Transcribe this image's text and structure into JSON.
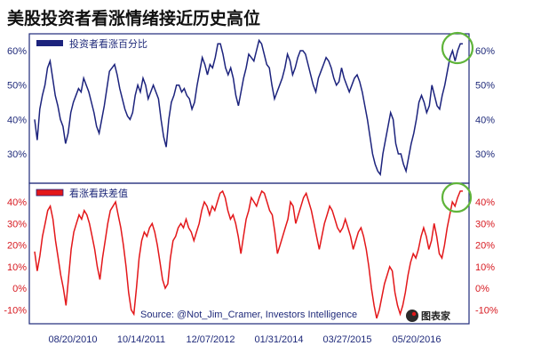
{
  "page": {
    "title": "美股投资者看涨情绪接近历史高位",
    "source": "Source: @Not_Jim_Cramer, Investors Intelligence",
    "logo_text": "图表家"
  },
  "colors": {
    "top_line": "#1c237d",
    "bottom_line": "#e3171a",
    "highlight": "#5fb43a",
    "frame": "#1f2a7a"
  },
  "chart_data": [
    {
      "type": "line",
      "title": "",
      "legend": "投资者看涨百分比",
      "series": [
        {
          "name": "投资者看涨百分比"
        }
      ],
      "y_ticks": [
        "30%",
        "40%",
        "50%",
        "60%"
      ],
      "y_tick_values": [
        30,
        40,
        50,
        60
      ],
      "ylim": [
        25,
        64
      ],
      "x_ticks": [
        "08/20/2010",
        "10/14/2011",
        "12/07/2012",
        "01/31/2014",
        "03/27/2015",
        "05/20/2016"
      ],
      "values": [
        40,
        34,
        43,
        47,
        50,
        55,
        57,
        52,
        47,
        44,
        40,
        38,
        33,
        36,
        42,
        45,
        47,
        49,
        48,
        52,
        50,
        48,
        45,
        42,
        38,
        36,
        40,
        44,
        49,
        54,
        55,
        56,
        53,
        49,
        46,
        43,
        41,
        40,
        42,
        47,
        50,
        48,
        52,
        50,
        46,
        48,
        50,
        48,
        46,
        40,
        35,
        32,
        40,
        45,
        47,
        50,
        50,
        48,
        49,
        47,
        46,
        43,
        45,
        50,
        54,
        58,
        56,
        53,
        56,
        55,
        58,
        62,
        62,
        59,
        55,
        53,
        55,
        52,
        47,
        44,
        48,
        52,
        55,
        59,
        58,
        57,
        60,
        63,
        62,
        59,
        56,
        55,
        50,
        46,
        48,
        50,
        52,
        55,
        59,
        57,
        53,
        55,
        58,
        60,
        60,
        59,
        56,
        53,
        50,
        48,
        52,
        54,
        56,
        58,
        57,
        55,
        52,
        50,
        51,
        55,
        52,
        50,
        48,
        50,
        52,
        53,
        51,
        48,
        44,
        40,
        35,
        30,
        27,
        25,
        24,
        30,
        34,
        38,
        42,
        40,
        33,
        30,
        30,
        27,
        25,
        29,
        33,
        36,
        40,
        45,
        47,
        45,
        42,
        44,
        50,
        47,
        44,
        43,
        47,
        50,
        54,
        58,
        60,
        57,
        60,
        62,
        62
      ]
    },
    {
      "type": "line",
      "title": "",
      "legend": "看涨看跌差值",
      "series": [
        {
          "name": "看涨看跌差值"
        }
      ],
      "y_ticks": [
        "-10%",
        "0%",
        "10%",
        "20%",
        "30%",
        "40%"
      ],
      "y_tick_values": [
        -10,
        0,
        10,
        20,
        30,
        40
      ],
      "ylim": [
        -14,
        46
      ],
      "x_ticks": [
        "08/20/2010",
        "10/14/2011",
        "12/07/2012",
        "01/31/2014",
        "03/27/2015",
        "05/20/2016"
      ],
      "values": [
        17,
        8,
        15,
        24,
        30,
        36,
        38,
        32,
        22,
        14,
        6,
        0,
        -8,
        5,
        18,
        26,
        30,
        34,
        32,
        36,
        34,
        30,
        24,
        18,
        10,
        4,
        14,
        22,
        30,
        36,
        38,
        40,
        34,
        28,
        20,
        10,
        -2,
        -10,
        -12,
        0,
        14,
        22,
        26,
        24,
        28,
        30,
        26,
        20,
        12,
        4,
        0,
        2,
        14,
        22,
        24,
        28,
        30,
        28,
        32,
        28,
        26,
        22,
        26,
        30,
        36,
        40,
        38,
        34,
        38,
        36,
        40,
        44,
        45,
        42,
        36,
        32,
        34,
        30,
        24,
        16,
        24,
        32,
        36,
        42,
        40,
        38,
        42,
        45,
        44,
        40,
        36,
        34,
        26,
        16,
        20,
        24,
        28,
        32,
        40,
        38,
        30,
        34,
        38,
        42,
        44,
        40,
        36,
        30,
        24,
        18,
        24,
        30,
        34,
        38,
        36,
        32,
        28,
        26,
        28,
        32,
        28,
        24,
        18,
        22,
        26,
        28,
        24,
        18,
        10,
        0,
        -8,
        -14,
        -10,
        -4,
        2,
        6,
        10,
        8,
        -2,
        -8,
        -12,
        -8,
        -2,
        6,
        12,
        16,
        14,
        18,
        24,
        28,
        24,
        18,
        22,
        30,
        24,
        16,
        14,
        20,
        28,
        34,
        40,
        38,
        42,
        45,
        45
      ]
    }
  ]
}
